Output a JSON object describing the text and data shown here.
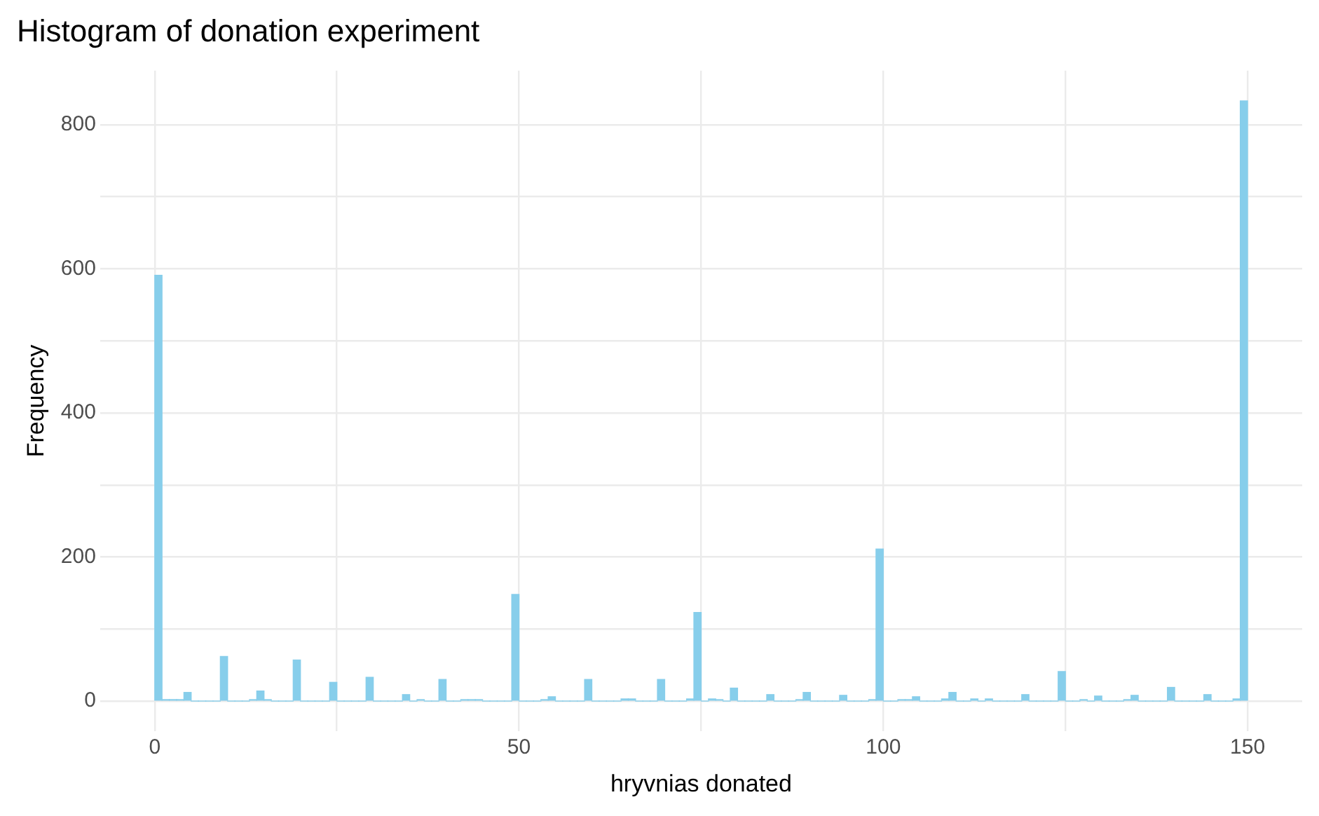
{
  "chart_data": {
    "type": "histogram",
    "title": "Histogram of donation experiment",
    "xlabel": "hryvnias donated",
    "ylabel": "Frequency",
    "bins": [
      0,
      1,
      2,
      3,
      4,
      5,
      6,
      7,
      8,
      9,
      10,
      11,
      12,
      13,
      14,
      15,
      16,
      17,
      18,
      19,
      20,
      21,
      22,
      23,
      24,
      25,
      26,
      27,
      28,
      29,
      30,
      31,
      32,
      33,
      34,
      35,
      36,
      37,
      38,
      39,
      40,
      41,
      42,
      43,
      44,
      45,
      46,
      47,
      48,
      49,
      50,
      51,
      52,
      53,
      54,
      55,
      56,
      57,
      58,
      59,
      60,
      61,
      62,
      63,
      64,
      65,
      66,
      67,
      68,
      69,
      70,
      71,
      72,
      73,
      74,
      75,
      76,
      77,
      78,
      79,
      80,
      81,
      82,
      83,
      84,
      85,
      86,
      87,
      88,
      89,
      90,
      91,
      92,
      93,
      94,
      95,
      96,
      97,
      98,
      99,
      100,
      101,
      102,
      103,
      104,
      105,
      106,
      107,
      108,
      109,
      110,
      111,
      112,
      113,
      114,
      115,
      116,
      117,
      118,
      119,
      120,
      121,
      122,
      123,
      124,
      125,
      126,
      127,
      128,
      129,
      130,
      131,
      132,
      133,
      134,
      135,
      136,
      137,
      138,
      139,
      140,
      141,
      142,
      143,
      144,
      145,
      146,
      147,
      148,
      149,
      150
    ],
    "values": [
      591,
      2,
      2,
      2,
      12,
      0,
      0,
      0,
      0,
      62,
      0,
      0,
      0,
      2,
      14,
      2,
      0,
      0,
      0,
      57,
      0,
      0,
      0,
      0,
      26,
      0,
      0,
      0,
      0,
      33,
      0,
      0,
      0,
      0,
      9,
      0,
      2,
      0,
      0,
      30,
      0,
      0,
      2,
      2,
      2,
      0,
      0,
      0,
      0,
      148,
      0,
      0,
      0,
      2,
      6,
      0,
      0,
      0,
      0,
      30,
      0,
      0,
      0,
      0,
      3,
      3,
      0,
      0,
      0,
      30,
      0,
      0,
      0,
      3,
      123,
      0,
      3,
      2,
      0,
      18,
      0,
      0,
      0,
      0,
      9,
      0,
      0,
      0,
      2,
      12,
      0,
      0,
      0,
      0,
      8,
      0,
      0,
      0,
      2,
      211,
      0,
      0,
      2,
      2,
      6,
      0,
      0,
      0,
      3,
      12,
      0,
      0,
      3,
      0,
      3,
      0,
      0,
      0,
      0,
      9,
      0,
      0,
      0,
      0,
      41,
      0,
      0,
      2,
      0,
      7,
      0,
      0,
      0,
      2,
      8,
      0,
      0,
      0,
      0,
      19,
      0,
      0,
      0,
      0,
      9,
      0,
      0,
      0,
      3,
      833
    ],
    "color": "#87ceeb",
    "xlim": [
      -7.5,
      157.5
    ],
    "xticks": [
      0,
      {
        "value": 25,
        "label": null
      },
      50,
      {
        "value": 75,
        "label": null
      },
      100,
      {
        "value": 125,
        "label": null
      },
      150
    ],
    "ylim": [
      -42,
      875
    ],
    "yticks": [
      0,
      {
        "value": 100,
        "label": null
      },
      200,
      {
        "value": 300,
        "label": null
      },
      400,
      {
        "value": 500,
        "label": null
      },
      600,
      {
        "value": 700,
        "label": null
      },
      800
    ],
    "grid": true
  }
}
